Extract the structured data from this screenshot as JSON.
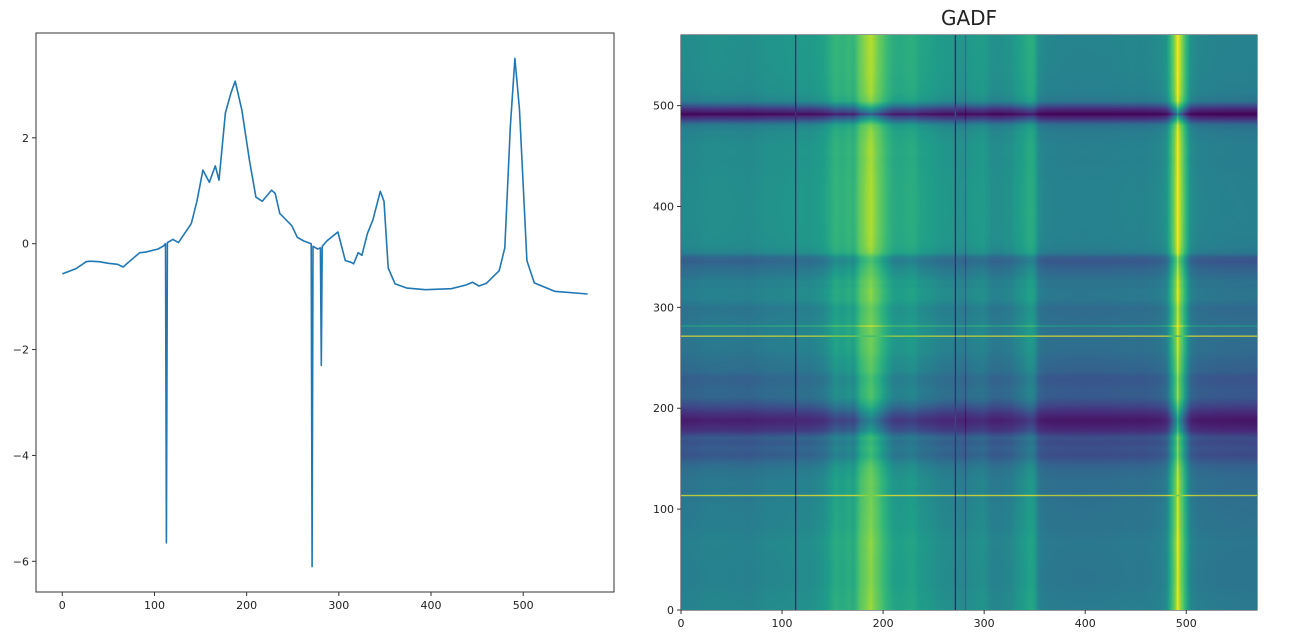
{
  "chart_data": [
    {
      "type": "line",
      "title": "",
      "xlabel": "",
      "ylabel": "",
      "xlim": [
        -28.5,
        598.5
      ],
      "ylim": [
        -6.58,
        3.98
      ],
      "xticks": [
        0,
        100,
        200,
        300,
        400,
        500
      ],
      "yticks": [
        -6,
        -4,
        -2,
        0,
        2
      ],
      "grid": false,
      "color": "#1f77b4",
      "series": [
        {
          "x": [
            0,
            15,
            26,
            30,
            40,
            50,
            60,
            66,
            72,
            84,
            90,
            104,
            110,
            112,
            113,
            114,
            120,
            126,
            133,
            140,
            146,
            152.6,
            159.5,
            166,
            170,
            177,
            183,
            187.6,
            194.7,
            203,
            210,
            217,
            227,
            231,
            236,
            249,
            255,
            262,
            270,
            271,
            272,
            277,
            280,
            281,
            282,
            287,
            299,
            307,
            313,
            316,
            321,
            325,
            331,
            337,
            345,
            349,
            353.6,
            361,
            374,
            394,
            422,
            438,
            445,
            452,
            460,
            474,
            480,
            486,
            491,
            496,
            504,
            512,
            534,
            570
          ],
          "y": [
            -0.57,
            -0.47,
            -0.34,
            -0.33,
            -0.34,
            -0.37,
            -0.39,
            -0.44,
            -0.35,
            -0.17,
            -0.16,
            -0.1,
            -0.04,
            0.0,
            -5.65,
            0.02,
            0.08,
            0.02,
            0.2,
            0.38,
            0.8,
            1.39,
            1.16,
            1.47,
            1.2,
            2.47,
            2.85,
            3.07,
            2.53,
            1.58,
            0.88,
            0.8,
            1.01,
            0.95,
            0.57,
            0.34,
            0.12,
            0.05,
            0.0,
            -6.1,
            -0.05,
            -0.1,
            -0.08,
            -2.3,
            -0.05,
            0.05,
            0.22,
            -0.32,
            -0.35,
            -0.38,
            -0.17,
            -0.22,
            0.19,
            0.45,
            0.99,
            0.8,
            -0.46,
            -0.76,
            -0.84,
            -0.87,
            -0.85,
            -0.78,
            -0.73,
            -0.8,
            -0.75,
            -0.51,
            -0.08,
            2.2,
            3.5,
            2.53,
            -0.32,
            -0.74,
            -0.9,
            -0.95
          ]
        }
      ]
    },
    {
      "type": "heatmap",
      "title": "GADF",
      "xlabel": "",
      "ylabel": "",
      "xlim": [
        0,
        570
      ],
      "ylim": [
        0,
        570
      ],
      "xticks": [
        0,
        100,
        200,
        300,
        400,
        500
      ],
      "yticks": [
        0,
        100,
        200,
        300,
        400,
        500
      ],
      "colormap": "viridis",
      "origin": "lower",
      "source": "Gramian Angular Difference Field of the series in the left panel"
    }
  ]
}
